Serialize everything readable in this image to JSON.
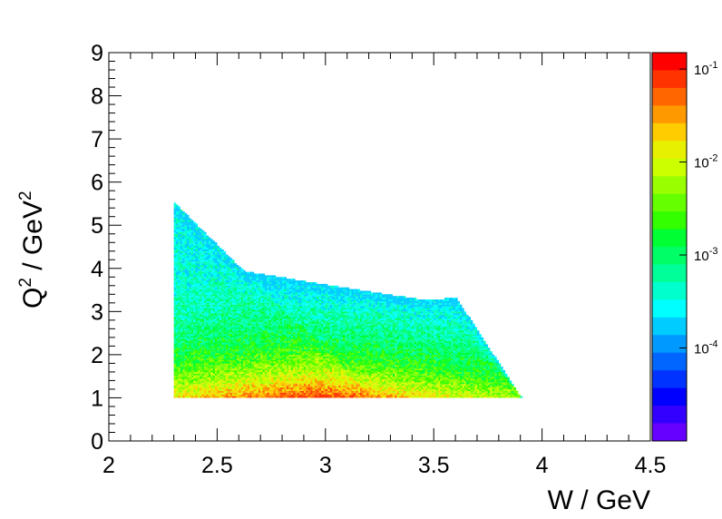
{
  "chart_data": {
    "type": "heatmap",
    "title": "",
    "xlabel": "W / GeV",
    "ylabel_parts": {
      "base": "Q",
      "sup": "2",
      "mid": " / GeV",
      "sup2": "2"
    },
    "xlim": [
      2.0,
      4.5
    ],
    "ylim": [
      0,
      9
    ],
    "x_ticks": [
      "2",
      "2.5",
      "3",
      "3.5",
      "4",
      "4.5"
    ],
    "y_ticks": [
      "0",
      "1",
      "2",
      "3",
      "4",
      "5",
      "6",
      "7",
      "8",
      "9"
    ],
    "colorbar": {
      "scale": "log",
      "range": [
        1e-05,
        0.15
      ],
      "tick_labels": [
        {
          "base": "10",
          "exp": "-1",
          "value": 0.1
        },
        {
          "base": "10",
          "exp": "-2",
          "value": 0.01
        },
        {
          "base": "10",
          "exp": "-3",
          "value": 0.001
        },
        {
          "base": "10",
          "exp": "-4",
          "value": 0.0001
        }
      ],
      "colors": [
        "#ff0000",
        "#ff3300",
        "#ff6600",
        "#ff9900",
        "#ffcc00",
        "#e6f000",
        "#ccff00",
        "#99ff00",
        "#66ff00",
        "#33ff00",
        "#00ff33",
        "#00ff66",
        "#00ff99",
        "#00ffcc",
        "#00ffff",
        "#00ccff",
        "#0099ff",
        "#0066ff",
        "#0033ff",
        "#0000ff",
        "#3300ff",
        "#6600ff"
      ]
    },
    "populated_region": {
      "description_points_W_Q2": [
        [
          2.3,
          1.0
        ],
        [
          2.3,
          5.5
        ],
        [
          2.62,
          3.92
        ],
        [
          3.0,
          3.6
        ],
        [
          3.45,
          3.25
        ],
        [
          3.6,
          3.3
        ],
        [
          3.9,
          1.0
        ]
      ],
      "peak_density_region": {
        "W": [
          2.8,
          3.1
        ],
        "Q2": [
          1.0,
          1.5
        ]
      }
    },
    "grid": false,
    "legend": "none"
  }
}
